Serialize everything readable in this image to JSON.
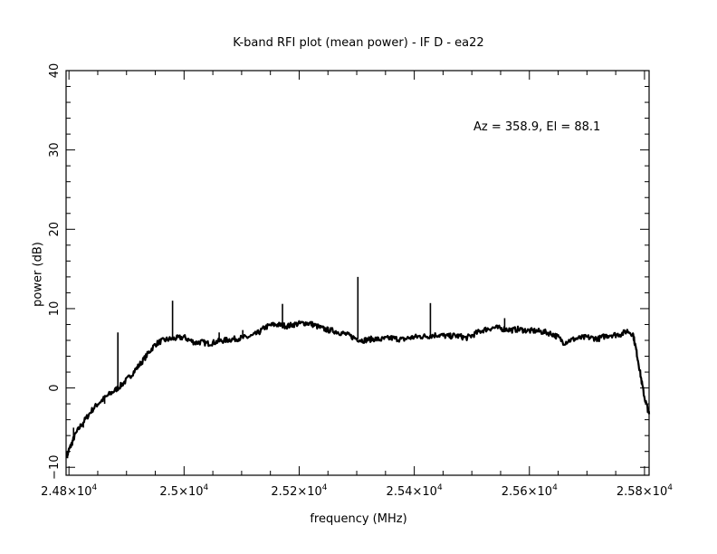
{
  "chart_data": {
    "type": "line",
    "title": "K-band RFI plot (mean power) - IF D - ea22",
    "xlabel": "frequency (MHz)",
    "ylabel": "power (dB)",
    "annotation": "Az = 358.9, El = 88.1",
    "xlim": [
      24795,
      25808
    ],
    "ylim": [
      -11,
      40
    ],
    "x_ticks": [
      {
        "value": 24800,
        "label": "2.48×10",
        "exp": "4"
      },
      {
        "value": 25000,
        "label": "2.5×10",
        "exp": "4"
      },
      {
        "value": 25200,
        "label": "2.52×10",
        "exp": "4"
      },
      {
        "value": 25400,
        "label": "2.54×10",
        "exp": "4"
      },
      {
        "value": 25600,
        "label": "2.56×10",
        "exp": "4"
      },
      {
        "value": 25800,
        "label": "2.58×10",
        "exp": "4"
      }
    ],
    "y_ticks": [
      {
        "value": -10,
        "label": "−10"
      },
      {
        "value": 0,
        "label": "0"
      },
      {
        "value": 10,
        "label": "10"
      },
      {
        "value": 20,
        "label": "20"
      },
      {
        "value": 30,
        "label": "30"
      },
      {
        "value": 40,
        "label": "40"
      }
    ],
    "grid": false,
    "series": [
      {
        "color": "#000000",
        "x": [
          24797,
          24800,
          24805,
          24810,
          24820,
          24830,
          24840,
          24850,
          24860,
          24870,
          24880,
          24890,
          24900,
          24910,
          24920,
          24930,
          24940,
          24950,
          24960,
          24970,
          24980,
          24990,
          25000,
          25010,
          25020,
          25030,
          25040,
          25050,
          25060,
          25070,
          25080,
          25090,
          25100,
          25110,
          25120,
          25130,
          25140,
          25150,
          25160,
          25170,
          25180,
          25190,
          25200,
          25210,
          25220,
          25230,
          25240,
          25250,
          25260,
          25270,
          25280,
          25290,
          25300,
          25310,
          25320,
          25330,
          25340,
          25350,
          25360,
          25370,
          25380,
          25390,
          25400,
          25410,
          25420,
          25430,
          25440,
          25450,
          25460,
          25470,
          25480,
          25490,
          25500,
          25510,
          25520,
          25530,
          25540,
          25550,
          25560,
          25570,
          25580,
          25590,
          25600,
          25610,
          25620,
          25630,
          25640,
          25650,
          25660,
          25670,
          25680,
          25690,
          25700,
          25710,
          25720,
          25730,
          25740,
          25750,
          25760,
          25770,
          25780,
          25785,
          25790,
          25795,
          25800,
          25805,
          25808
        ],
        "y": [
          -8.5,
          -7.8,
          -7.0,
          -6.0,
          -4.8,
          -3.8,
          -2.8,
          -2.0,
          -1.4,
          -0.8,
          -0.3,
          0.3,
          1.0,
          1.8,
          2.7,
          3.6,
          4.6,
          5.5,
          5.9,
          6.1,
          6.2,
          6.3,
          6.4,
          6.0,
          5.7,
          5.8,
          5.6,
          5.7,
          5.9,
          6.0,
          6.1,
          6.2,
          6.3,
          6.4,
          6.6,
          7.0,
          7.6,
          7.9,
          8.0,
          7.9,
          7.8,
          8.0,
          8.1,
          8.2,
          8.1,
          7.8,
          7.5,
          7.3,
          7.2,
          7.0,
          6.8,
          6.5,
          6.2,
          6.0,
          6.1,
          6.2,
          6.1,
          6.2,
          6.3,
          6.2,
          6.1,
          6.3,
          6.4,
          6.5,
          6.5,
          6.6,
          6.7,
          6.6,
          6.5,
          6.6,
          6.5,
          6.3,
          6.6,
          7.0,
          7.3,
          7.5,
          7.6,
          7.5,
          7.4,
          7.3,
          7.4,
          7.3,
          7.2,
          7.2,
          7.1,
          7.0,
          6.8,
          6.4,
          5.7,
          6.0,
          6.2,
          6.3,
          6.4,
          6.3,
          6.2,
          6.5,
          6.7,
          6.7,
          6.8,
          7.2,
          6.8,
          5.0,
          3.0,
          0.8,
          -1.2,
          -2.5,
          -3.3
        ]
      }
    ],
    "spikes": [
      {
        "x": 24808,
        "y": -5.0
      },
      {
        "x": 24825,
        "y": -5.0
      },
      {
        "x": 24862,
        "y": -2.0
      },
      {
        "x": 24885,
        "y": 7.0
      },
      {
        "x": 24980,
        "y": 11.0
      },
      {
        "x": 25061,
        "y": 7.0
      },
      {
        "x": 25102,
        "y": 7.3
      },
      {
        "x": 25171,
        "y": 10.6
      },
      {
        "x": 25302,
        "y": 14.0
      },
      {
        "x": 25428,
        "y": 10.7
      },
      {
        "x": 25557,
        "y": 8.8
      }
    ]
  }
}
